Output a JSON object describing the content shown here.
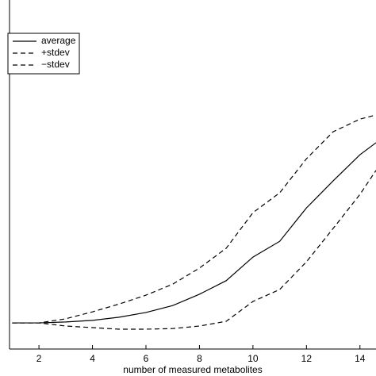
{
  "chart_data": {
    "type": "line",
    "x_label": "number of measured metabolites",
    "x": [
      1,
      2,
      3,
      4,
      5,
      6,
      7,
      8,
      9,
      10,
      11,
      12,
      13,
      14,
      14.6
    ],
    "series": [
      {
        "name": "average",
        "color": "#000000",
        "style": "solid",
        "values": [
          0,
          0,
          0.003,
          0.008,
          0.018,
          0.033,
          0.055,
          0.091,
          0.134,
          0.209,
          0.259,
          0.365,
          0.451,
          0.534,
          0.572
        ]
      },
      {
        "name": "+stdev",
        "color": "#000000",
        "style": "dashed",
        "values": [
          0,
          0,
          0.013,
          0.035,
          0.06,
          0.088,
          0.123,
          0.174,
          0.237,
          0.35,
          0.413,
          0.521,
          0.607,
          0.647,
          0.66
        ]
      },
      {
        "name": "−stdev",
        "color": "#000000",
        "style": "dashed",
        "values": [
          0,
          0,
          -0.01,
          -0.015,
          -0.02,
          -0.02,
          -0.018,
          -0.01,
          0.005,
          0.068,
          0.106,
          0.194,
          0.3,
          0.408,
          0.484
        ]
      }
    ],
    "xlim": [
      0.9,
      14.6
    ],
    "xticks": [
      2,
      4,
      6,
      8,
      10,
      12,
      14
    ],
    "ylim": [
      -0.083,
      1
    ],
    "legend": "upper left"
  }
}
